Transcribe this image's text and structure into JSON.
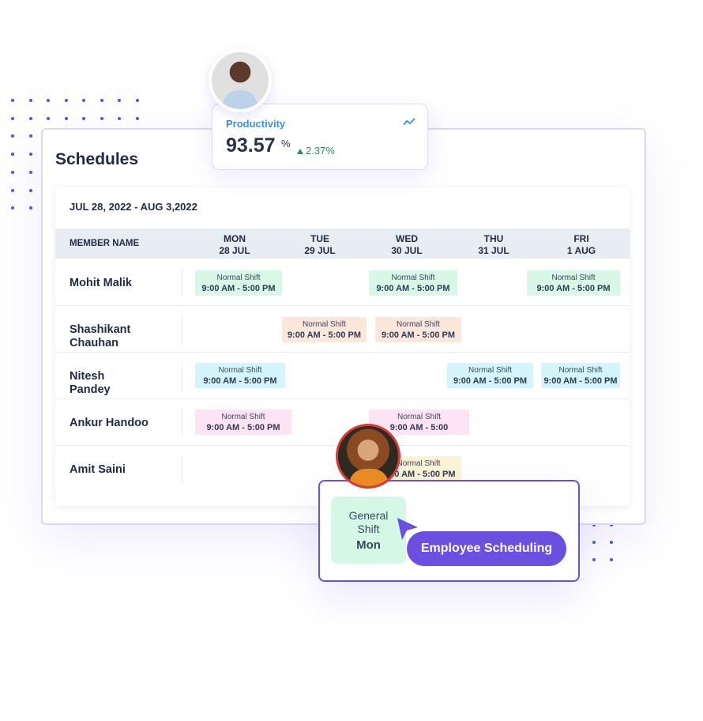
{
  "productivity": {
    "label": "Productivity",
    "value": "93.57",
    "unit": "%",
    "change": "2.37%",
    "change_icon": "triangle-up-icon",
    "trend_icon": "trend-line-icon"
  },
  "schedule": {
    "title": "Schedules",
    "date_range": "JUL 28, 2022 - AUG 3,2022",
    "columns": [
      {
        "label": "MEMBER NAME"
      },
      {
        "day": "MON",
        "date": "28 JUL"
      },
      {
        "day": "TUE",
        "date": "29 JUL"
      },
      {
        "day": "WED",
        "date": "30 JUL"
      },
      {
        "day": "THU",
        "date": "31 JUL"
      },
      {
        "day": "FRI",
        "date": "1 AUG"
      }
    ],
    "rows": [
      {
        "name": "Mohit Malik",
        "shifts": [
          {
            "label": "Normal Shift",
            "time": "9:00 AM - 5:00 PM",
            "color": "#d8f7e6"
          },
          {
            "label": "Normal Shift",
            "time": "9:00 AM - 5:00 PM",
            "color": "#d8f7e6"
          },
          {
            "label": "Normal Shift",
            "time": "9:00 AM - 5:00 PM",
            "color": "#d8f7e6"
          }
        ]
      },
      {
        "name": "Shashikant Chauhan",
        "shifts": [
          {
            "label": "Normal Shift",
            "time": "9:00 AM - 5:00 PM",
            "color": "#fde6da"
          },
          {
            "label": "Normal Shift",
            "time": "9:00 AM - 5:00 PM",
            "color": "#fde6da"
          }
        ]
      },
      {
        "name": "Nitesh Pandey",
        "shifts": [
          {
            "label": "Normal Shift",
            "time": "9:00 AM - 5:00 PM",
            "color": "#d4f5fb"
          },
          {
            "label": "Normal Shift",
            "time": "9:00 AM - 5:00 PM",
            "color": "#d4f5fb"
          },
          {
            "label": "Normal Shift",
            "time": "9:00 AM - 5:00 PM",
            "color": "#d4f5fb"
          }
        ]
      },
      {
        "name": "Ankur Handoo",
        "shifts": [
          {
            "label": "Normal Shift",
            "time": "9:00 AM - 5:00 PM",
            "color": "#fde3f4"
          },
          {
            "label": "Normal Shift",
            "time": "9:00 AM - 5:00",
            "color": "#fde3f4"
          }
        ]
      },
      {
        "name": "Amit Saini",
        "shifts": [
          {
            "label": "Normal Shift",
            "time": "9:00 AM - 5:00 PM",
            "color": "#fdf3d4"
          }
        ]
      }
    ]
  },
  "popup": {
    "shift_line1": "General",
    "shift_line2": "Shift",
    "shift_day": "Mon",
    "button": "Employee Scheduling",
    "accent": "#6a4fe0"
  }
}
